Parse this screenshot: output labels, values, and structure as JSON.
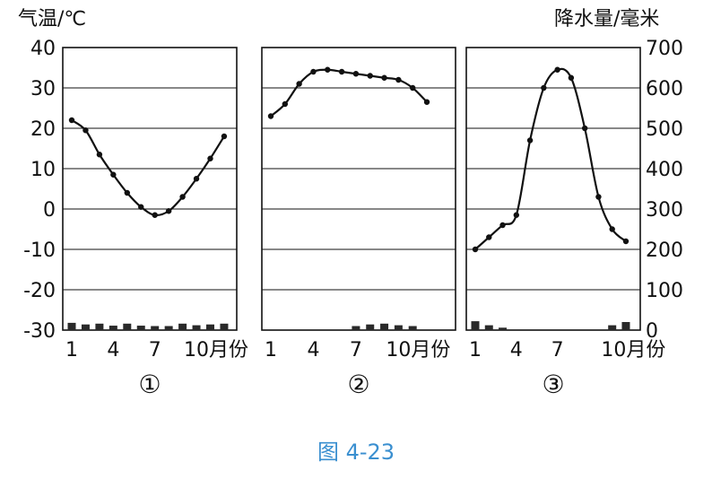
{
  "figure_caption": "图 4-23",
  "left_axis_label": "气温/℃",
  "right_axis_label": "降水量/毫米",
  "x_axis_suffix": "月份",
  "colors": {
    "ink": "#111111",
    "caption": "#3a8fd0"
  },
  "chart_data": [
    {
      "type": "line",
      "panel_label": "①",
      "x": [
        1,
        2,
        3,
        4,
        5,
        6,
        7,
        8,
        9,
        10,
        11,
        12
      ],
      "x_tick_labels": [
        "1",
        "4",
        "7",
        "10"
      ],
      "temperature_c": [
        22,
        19.5,
        13.5,
        8.5,
        4,
        0.5,
        -1.5,
        -0.5,
        3,
        7.5,
        12.5,
        18
      ],
      "precipitation_mm": [
        18,
        14,
        16,
        11,
        16,
        11,
        10,
        10,
        16,
        12,
        14,
        16
      ],
      "ylim_temperature": [
        -30,
        40
      ],
      "ylim_precipitation": [
        0,
        700
      ],
      "grid": true
    },
    {
      "type": "line",
      "panel_label": "②",
      "x": [
        1,
        2,
        3,
        4,
        5,
        6,
        7,
        8,
        9,
        10,
        11,
        12
      ],
      "x_tick_labels": [
        "1",
        "4",
        "7",
        "10"
      ],
      "temperature_c": [
        23,
        26,
        31,
        34,
        34.5,
        34,
        33.5,
        33,
        32.5,
        32,
        30,
        26.5
      ],
      "precipitation_mm": [
        0,
        0,
        0,
        0,
        0,
        0,
        10,
        14,
        16,
        12,
        10,
        0
      ],
      "ylim_temperature": [
        -30,
        40
      ],
      "ylim_precipitation": [
        0,
        700
      ],
      "grid": true
    },
    {
      "type": "line",
      "panel_label": "③",
      "x": [
        1,
        2,
        3,
        4,
        5,
        6,
        7,
        8,
        9,
        10,
        11,
        12
      ],
      "x_tick_labels": [
        "1",
        "4",
        "7"
      ],
      "temperature_c": [
        -10,
        -7,
        -4,
        -1.5,
        17,
        30,
        34.5,
        32.5,
        20,
        3,
        -5,
        -8
      ],
      "precipitation_mm": [
        22,
        12,
        6,
        0,
        0,
        0,
        0,
        0,
        0,
        0,
        12,
        20
      ],
      "ylim_temperature": [
        -30,
        40
      ],
      "ylim_precipitation": [
        0,
        700
      ],
      "grid": true
    }
  ],
  "left_ticks": [
    "40",
    "30",
    "20",
    "10",
    "0",
    "-10",
    "-20",
    "-30"
  ],
  "right_ticks": [
    "700",
    "600",
    "500",
    "400",
    "300",
    "200",
    "100",
    "0"
  ]
}
